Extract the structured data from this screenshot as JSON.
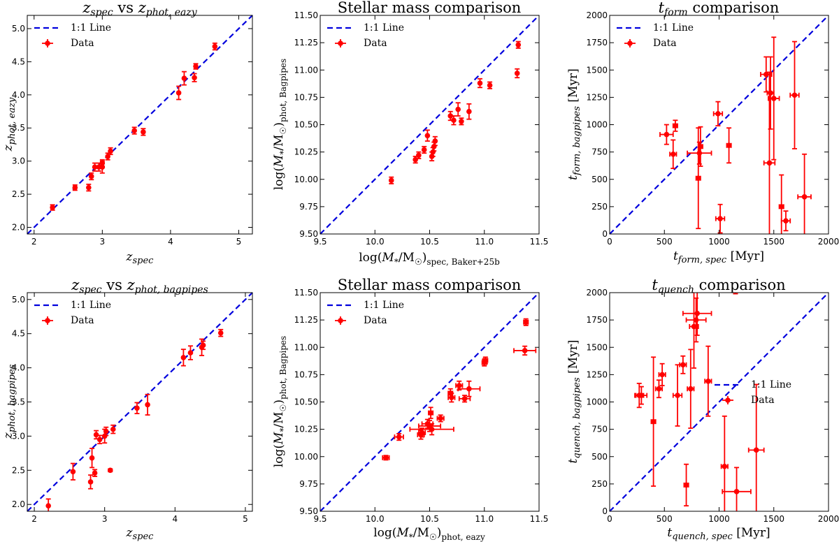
{
  "colors": {
    "data": "#ff0000",
    "line": "#0000dd",
    "axis": "#000000"
  },
  "chart_data": [
    {
      "type": "scatter",
      "title": "z_spec vs z_phot,eazy",
      "xlabel": "z_spec",
      "ylabel": "z_phot,eazy",
      "xlim": [
        1.9,
        5.2
      ],
      "ylim": [
        1.9,
        5.2
      ],
      "xticks": [
        2,
        3,
        4,
        5
      ],
      "yticks": [
        2.0,
        2.5,
        3.0,
        3.5,
        4.0,
        4.5,
        5.0
      ],
      "xtick_labels": [
        "2",
        "3",
        "4",
        "5"
      ],
      "ytick_labels": [
        "2.0",
        "2.5",
        "3.0",
        "3.5",
        "4.0",
        "4.5",
        "5.0"
      ],
      "legend": [
        "1:1 Line",
        "Data"
      ],
      "legend_loc": "top-left",
      "points": [
        {
          "x": 2.27,
          "y": 2.3,
          "xe": 0,
          "ye": 0.04
        },
        {
          "x": 2.6,
          "y": 2.6,
          "xe": 0,
          "ye": 0.04
        },
        {
          "x": 2.8,
          "y": 2.6,
          "xe": 0,
          "ye": 0.05
        },
        {
          "x": 2.84,
          "y": 2.77,
          "xe": 0,
          "ye": 0.05
        },
        {
          "x": 2.89,
          "y": 2.91,
          "xe": 0,
          "ye": 0.06
        },
        {
          "x": 2.95,
          "y": 2.91,
          "xe": 0,
          "ye": 0.06
        },
        {
          "x": 3.0,
          "y": 2.91,
          "xe": 0,
          "ye": 0.09
        },
        {
          "x": 3.0,
          "y": 2.97,
          "xe": 0,
          "ye": 0.05
        },
        {
          "x": 3.08,
          "y": 3.07,
          "xe": 0,
          "ye": 0.05
        },
        {
          "x": 3.12,
          "y": 3.15,
          "xe": 0,
          "ye": 0.05
        },
        {
          "x": 3.47,
          "y": 3.46,
          "xe": 0,
          "ye": 0.05
        },
        {
          "x": 3.6,
          "y": 3.44,
          "xe": 0,
          "ye": 0.05
        },
        {
          "x": 4.12,
          "y": 4.03,
          "xe": 0,
          "ye": 0.1
        },
        {
          "x": 4.2,
          "y": 4.25,
          "xe": 0,
          "ye": 0.1
        },
        {
          "x": 4.35,
          "y": 4.26,
          "xe": 0,
          "ye": 0.06
        },
        {
          "x": 4.37,
          "y": 4.43,
          "xe": 0,
          "ye": 0.04
        },
        {
          "x": 4.65,
          "y": 4.73,
          "xe": 0,
          "ye": 0.05
        }
      ]
    },
    {
      "type": "scatter",
      "title": "Stellar mass comparison",
      "xlabel": "log(M*/M☉)spec, Baker+25b",
      "ylabel": "log(M*/M☉)phot, Bagpipes",
      "xlim": [
        9.5,
        11.5
      ],
      "ylim": [
        9.5,
        11.5
      ],
      "xticks": [
        9.5,
        10.0,
        10.5,
        11.0,
        11.5
      ],
      "yticks": [
        9.5,
        9.75,
        10.0,
        10.25,
        10.5,
        10.75,
        11.0,
        11.25,
        11.5
      ],
      "xtick_labels": [
        "9.5",
        "10.0",
        "10.5",
        "11.0",
        "11.5"
      ],
      "ytick_labels": [
        "9.50",
        "9.75",
        "10.00",
        "10.25",
        "10.50",
        "10.75",
        "11.00",
        "11.25",
        "11.50"
      ],
      "legend": [
        "1:1 Line",
        "Data"
      ],
      "legend_loc": "top-left",
      "points": [
        {
          "x": 10.15,
          "y": 9.99,
          "xe": 0,
          "ye": 0.03
        },
        {
          "x": 10.37,
          "y": 10.18,
          "xe": 0,
          "ye": 0.03
        },
        {
          "x": 10.4,
          "y": 10.22,
          "xe": 0,
          "ye": 0.03
        },
        {
          "x": 10.45,
          "y": 10.27,
          "xe": 0,
          "ye": 0.03
        },
        {
          "x": 10.48,
          "y": 10.4,
          "xe": 0,
          "ye": 0.05
        },
        {
          "x": 10.52,
          "y": 10.21,
          "xe": 0,
          "ye": 0.04
        },
        {
          "x": 10.53,
          "y": 10.25,
          "xe": 0,
          "ye": 0.04
        },
        {
          "x": 10.54,
          "y": 10.3,
          "xe": 0,
          "ye": 0.04
        },
        {
          "x": 10.55,
          "y": 10.35,
          "xe": 0,
          "ye": 0.04
        },
        {
          "x": 10.69,
          "y": 10.58,
          "xe": 0,
          "ye": 0.04
        },
        {
          "x": 10.72,
          "y": 10.54,
          "xe": 0,
          "ye": 0.04
        },
        {
          "x": 10.76,
          "y": 10.64,
          "xe": 0,
          "ye": 0.06
        },
        {
          "x": 10.79,
          "y": 10.53,
          "xe": 0,
          "ye": 0.03
        },
        {
          "x": 10.86,
          "y": 10.62,
          "xe": 0,
          "ye": 0.07
        },
        {
          "x": 10.96,
          "y": 10.88,
          "xe": 0,
          "ye": 0.04
        },
        {
          "x": 11.05,
          "y": 10.86,
          "xe": 0,
          "ye": 0.03
        },
        {
          "x": 11.3,
          "y": 10.97,
          "xe": 0,
          "ye": 0.04
        },
        {
          "x": 11.31,
          "y": 11.23,
          "xe": 0,
          "ye": 0.03
        }
      ]
    },
    {
      "type": "scatter",
      "title": "t_form comparison",
      "xlabel": "t_form,spec [Myr]",
      "ylabel": "t_form,bagpipes [Myr]",
      "xlim": [
        0,
        2000
      ],
      "ylim": [
        0,
        2000
      ],
      "xticks": [
        0,
        500,
        1000,
        1500,
        2000
      ],
      "yticks": [
        0,
        250,
        500,
        750,
        1000,
        1250,
        1500,
        1750,
        2000
      ],
      "xtick_labels": [
        "0",
        "500",
        "1000",
        "1500",
        "2000"
      ],
      "ytick_labels": [
        "0",
        "250",
        "500",
        "750",
        "1000",
        "1250",
        "1500",
        "1750",
        "2000"
      ],
      "legend": [
        "1:1 Line",
        "Data"
      ],
      "legend_loc": "top-left",
      "points": [
        {
          "x": 520,
          "y": 910,
          "xe": 60,
          "ye": 90
        },
        {
          "x": 580,
          "y": 730,
          "xe": 30,
          "ye": 130
        },
        {
          "x": 600,
          "y": 990,
          "xe": 20,
          "ye": 50
        },
        {
          "x": 810,
          "y": 510,
          "xe": 20,
          "ye": 460
        },
        {
          "x": 820,
          "y": 740,
          "xe": 110,
          "ye": 100
        },
        {
          "x": 830,
          "y": 800,
          "xe": 20,
          "ye": 180
        },
        {
          "x": 990,
          "y": 1100,
          "xe": 40,
          "ye": 110
        },
        {
          "x": 1010,
          "y": 140,
          "xe": 40,
          "ye": 130
        },
        {
          "x": 1090,
          "y": 810,
          "xe": 20,
          "ye": 160
        },
        {
          "x": 1430,
          "y": 1460,
          "xe": 50,
          "ye": 160
        },
        {
          "x": 1460,
          "y": 650,
          "xe": 50,
          "ye": 830
        },
        {
          "x": 1470,
          "y": 1290,
          "xe": 30,
          "ye": 330
        },
        {
          "x": 1500,
          "y": 1240,
          "xe": 50,
          "ye": 560
        },
        {
          "x": 1570,
          "y": 250,
          "xe": 20,
          "ye": 290
        },
        {
          "x": 1610,
          "y": 120,
          "xe": 40,
          "ye": 90
        },
        {
          "x": 1690,
          "y": 1270,
          "xe": 40,
          "ye": 490
        },
        {
          "x": 1780,
          "y": 340,
          "xe": 60,
          "ye": 390
        }
      ]
    },
    {
      "type": "scatter",
      "title": "z_spec vs z_phot,bagpipes",
      "xlabel": "z_spec",
      "ylabel": "z_phot,bagpipes",
      "xlim": [
        1.9,
        5.1
      ],
      "ylim": [
        1.9,
        5.1
      ],
      "xticks": [
        2,
        3,
        4,
        5
      ],
      "yticks": [
        2.0,
        2.5,
        3.0,
        3.5,
        4.0,
        4.5,
        5.0
      ],
      "xtick_labels": [
        "2",
        "3",
        "4",
        "5"
      ],
      "ytick_labels": [
        "2.0",
        "2.5",
        "3.0",
        "3.5",
        "4.0",
        "4.5",
        "5.0"
      ],
      "legend": [
        "1:1 Line",
        "Data"
      ],
      "legend_loc": "top-left",
      "points": [
        {
          "x": 2.2,
          "y": 1.98,
          "xe": 0,
          "ye": 0.1
        },
        {
          "x": 2.55,
          "y": 2.48,
          "xe": 0,
          "ye": 0.12
        },
        {
          "x": 2.8,
          "y": 2.33,
          "xe": 0,
          "ye": 0.1
        },
        {
          "x": 2.82,
          "y": 2.68,
          "xe": 0,
          "ye": 0.14
        },
        {
          "x": 2.86,
          "y": 2.46,
          "xe": 0,
          "ye": 0.05
        },
        {
          "x": 2.88,
          "y": 3.02,
          "xe": 0,
          "ye": 0.06
        },
        {
          "x": 2.93,
          "y": 2.95,
          "xe": 0,
          "ye": 0.06
        },
        {
          "x": 3.0,
          "y": 3.0,
          "xe": 0,
          "ye": 0.1
        },
        {
          "x": 3.02,
          "y": 3.07,
          "xe": 0,
          "ye": 0.06
        },
        {
          "x": 3.08,
          "y": 2.5,
          "xe": 0,
          "ye": 0.02
        },
        {
          "x": 3.12,
          "y": 3.1,
          "xe": 0,
          "ye": 0.06
        },
        {
          "x": 3.46,
          "y": 3.41,
          "xe": 0,
          "ye": 0.08
        },
        {
          "x": 3.61,
          "y": 3.46,
          "xe": 0,
          "ye": 0.15
        },
        {
          "x": 4.12,
          "y": 4.15,
          "xe": 0,
          "ye": 0.12
        },
        {
          "x": 4.22,
          "y": 4.22,
          "xe": 0,
          "ye": 0.1
        },
        {
          "x": 4.38,
          "y": 4.3,
          "xe": 0,
          "ye": 0.12
        },
        {
          "x": 4.4,
          "y": 4.33,
          "xe": 0,
          "ye": 0.06
        },
        {
          "x": 4.65,
          "y": 4.51,
          "xe": 0,
          "ye": 0.05
        }
      ]
    },
    {
      "type": "scatter",
      "title": "Stellar mass comparison",
      "xlabel": "log(M*/M☉)phot, eazy",
      "ylabel": "log(M*/M☉)phot, Bagpipes",
      "xlim": [
        9.5,
        11.5
      ],
      "ylim": [
        9.5,
        11.5
      ],
      "xticks": [
        9.5,
        10.0,
        10.5,
        11.0,
        11.5
      ],
      "yticks": [
        9.5,
        9.75,
        10.0,
        10.25,
        10.5,
        10.75,
        11.0,
        11.25,
        11.5
      ],
      "xtick_labels": [
        "9.5",
        "10.0",
        "10.5",
        "11.0",
        "11.5"
      ],
      "ytick_labels": [
        "9.50",
        "9.75",
        "10.00",
        "10.25",
        "10.50",
        "10.75",
        "11.00",
        "11.25",
        "11.50"
      ],
      "legend": [
        "1:1 Line",
        "Data"
      ],
      "legend_loc": "top-left",
      "points": [
        {
          "x": 10.1,
          "y": 9.99,
          "xe": 0.03,
          "ye": 0.02
        },
        {
          "x": 10.22,
          "y": 10.18,
          "xe": 0.04,
          "ye": 0.03
        },
        {
          "x": 10.42,
          "y": 10.2,
          "xe": 0.03,
          "ye": 0.04
        },
        {
          "x": 10.43,
          "y": 10.22,
          "xe": 0.03,
          "ye": 0.04
        },
        {
          "x": 10.48,
          "y": 10.3,
          "xe": 0.05,
          "ye": 0.04
        },
        {
          "x": 10.5,
          "y": 10.28,
          "xe": 0.1,
          "ye": 0.05
        },
        {
          "x": 10.52,
          "y": 10.25,
          "xe": 0.2,
          "ye": 0.05
        },
        {
          "x": 10.51,
          "y": 10.4,
          "xe": 0.02,
          "ye": 0.05
        },
        {
          "x": 10.6,
          "y": 10.35,
          "xe": 0.03,
          "ye": 0.03
        },
        {
          "x": 10.69,
          "y": 10.58,
          "xe": 0.02,
          "ye": 0.04
        },
        {
          "x": 10.7,
          "y": 10.54,
          "xe": 0.03,
          "ye": 0.04
        },
        {
          "x": 10.77,
          "y": 10.65,
          "xe": 0.03,
          "ye": 0.04
        },
        {
          "x": 10.82,
          "y": 10.53,
          "xe": 0.05,
          "ye": 0.03
        },
        {
          "x": 10.86,
          "y": 10.62,
          "xe": 0.1,
          "ye": 0.07
        },
        {
          "x": 11.0,
          "y": 10.86,
          "xe": 0.02,
          "ye": 0.03
        },
        {
          "x": 11.01,
          "y": 10.88,
          "xe": 0.02,
          "ye": 0.03
        },
        {
          "x": 11.37,
          "y": 10.97,
          "xe": 0.1,
          "ye": 0.04
        },
        {
          "x": 11.38,
          "y": 11.23,
          "xe": 0.02,
          "ye": 0.03
        }
      ]
    },
    {
      "type": "scatter",
      "title": "t_quench comparison",
      "xlabel": "t_quench,spec [Myr]",
      "ylabel": "t_quench,bagpipes [Myr]",
      "xlim": [
        0,
        2000
      ],
      "ylim": [
        0,
        2000
      ],
      "xticks": [
        0,
        500,
        1000,
        1500,
        2000
      ],
      "yticks": [
        0,
        250,
        500,
        750,
        1000,
        1250,
        1500,
        1750,
        2000
      ],
      "xtick_labels": [
        "0",
        "500",
        "1000",
        "1500",
        "2000"
      ],
      "ytick_labels": [
        "0",
        "250",
        "500",
        "750",
        "1000",
        "1250",
        "1500",
        "1750",
        "2000"
      ],
      "legend": [
        "1:1 Line",
        "Data"
      ],
      "legend_loc": "center-right",
      "points": [
        {
          "x": 270,
          "y": 1060,
          "xe": 40,
          "ye": 110
        },
        {
          "x": 290,
          "y": 1060,
          "xe": 50,
          "ye": 80
        },
        {
          "x": 400,
          "y": 820,
          "xe": 20,
          "ye": 590
        },
        {
          "x": 450,
          "y": 1120,
          "xe": 30,
          "ye": 80
        },
        {
          "x": 480,
          "y": 1250,
          "xe": 30,
          "ye": 100
        },
        {
          "x": 620,
          "y": 1060,
          "xe": 40,
          "ye": 280
        },
        {
          "x": 670,
          "y": 1340,
          "xe": 30,
          "ye": 80
        },
        {
          "x": 700,
          "y": 240,
          "xe": 20,
          "ye": 190
        },
        {
          "x": 740,
          "y": 1120,
          "xe": 30,
          "ye": 360
        },
        {
          "x": 770,
          "y": 1690,
          "xe": 40,
          "ye": 380
        },
        {
          "x": 790,
          "y": 1750,
          "xe": 90,
          "ye": 200
        },
        {
          "x": 800,
          "y": 1810,
          "xe": 130,
          "ye": 200
        },
        {
          "x": 900,
          "y": 1190,
          "xe": 30,
          "ye": 320
        },
        {
          "x": 1050,
          "y": 410,
          "xe": 30,
          "ye": 460
        },
        {
          "x": 1150,
          "y": 2050,
          "xe": 50,
          "ye": 60
        },
        {
          "x": 1160,
          "y": 180,
          "xe": 130,
          "ye": 220
        },
        {
          "x": 1340,
          "y": 560,
          "xe": 70,
          "ye": 600
        }
      ]
    }
  ]
}
